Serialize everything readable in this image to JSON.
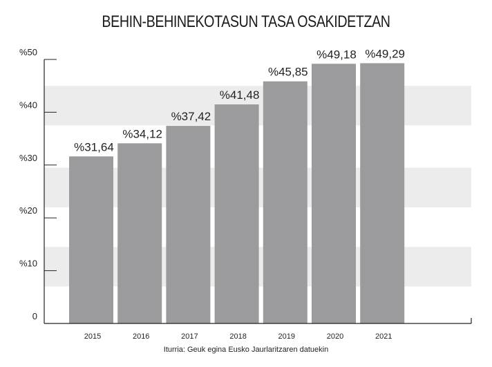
{
  "chart_data": {
    "type": "bar",
    "title": "BEHIN-BEHINEKOTASUN TASA OSAKIDETZAN",
    "categories": [
      "2015",
      "2016",
      "2017",
      "2018",
      "2019",
      "2020",
      "2021"
    ],
    "values": [
      31.64,
      34.12,
      37.42,
      41.48,
      45.85,
      49.18,
      49.29
    ],
    "value_labels": [
      "%31,64",
      "%34,12",
      "%37,42",
      "%41,48",
      "%45,85",
      "%49,18",
      "%49,29"
    ],
    "yticks": [
      0,
      10,
      20,
      30,
      40,
      50
    ],
    "ytick_labels": [
      "0",
      "%10",
      "%20",
      "%30",
      "%40",
      "%50"
    ],
    "ylim": [
      0,
      50
    ],
    "xlabel": "",
    "ylabel": "",
    "grid": "alternating horizontal bands",
    "legend": "none",
    "bar_color": "#9b9b9d",
    "band_color": "#ececec"
  },
  "source": "Iturria: Geuk egina Eusko Jaurlaritzaren datuekin"
}
